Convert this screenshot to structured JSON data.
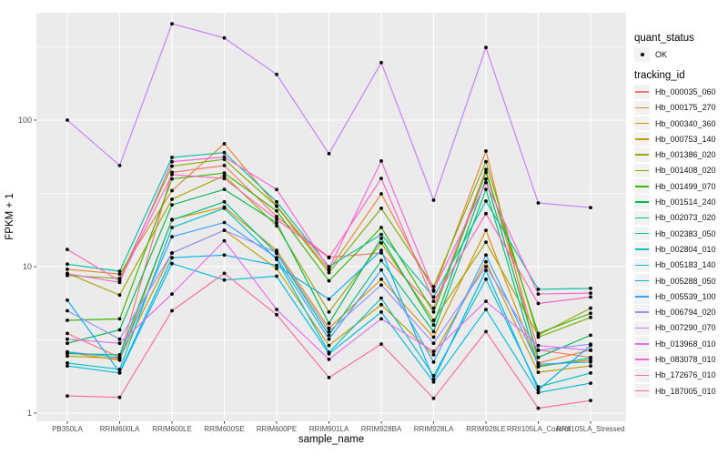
{
  "chart_data": {
    "type": "line",
    "xlabel": "sample_name",
    "ylabel": "FPKM + 1",
    "y_scale": "log10",
    "y_tick_labels": [
      "100",
      "10",
      "1"
    ],
    "y_tick_values": [
      100,
      10,
      1
    ],
    "y_minor_values": [
      316,
      31.6,
      3.16
    ],
    "ylim": [
      1,
      560
    ],
    "grid": true,
    "legend_position": "right",
    "categories": [
      "PB350LA",
      "RRIM600LA",
      "RRIM600LE",
      "RRIM600SE",
      "RRIM600PE",
      "RRIM901LA",
      "RRIM928BA",
      "RRIM928LA",
      "RRIM928LE",
      "RRII105LA_Control",
      "RRII105LA_Stressed"
    ],
    "series": [
      {
        "name": "Hb_000035_060",
        "color": "#F8766D",
        "values": [
          3.5,
          2.4,
          44,
          49,
          22,
          11.6,
          12.4,
          5.2,
          46,
          2.7,
          2.4
        ]
      },
      {
        "name": "Hb_000175_270",
        "color": "#EA8331",
        "values": [
          9.6,
          8.9,
          33,
          69,
          26,
          9.5,
          31.4,
          6.8,
          61.5,
          2.2,
          2.7
        ]
      },
      {
        "name": "Hb_000340_360",
        "color": "#D89000",
        "values": [
          2.6,
          2.3,
          21,
          25.5,
          12.9,
          3.8,
          8.2,
          3.3,
          17.7,
          2.1,
          2.3
        ]
      },
      {
        "name": "Hb_000753_140",
        "color": "#C09B00",
        "values": [
          2.45,
          2.36,
          12.4,
          17.7,
          9.7,
          2.9,
          5.5,
          2.5,
          10.8,
          1.9,
          2.1
        ]
      },
      {
        "name": "Hb_001386_020",
        "color": "#A3A500",
        "values": [
          9.0,
          6.4,
          28.8,
          41.8,
          19.0,
          4.9,
          14.5,
          4.3,
          14.7,
          3.4,
          5.2
        ]
      },
      {
        "name": "Hb_001408_020",
        "color": "#7CAE00",
        "values": [
          8.7,
          8.3,
          48.5,
          54,
          25.8,
          9.1,
          25,
          7.3,
          52,
          3.3,
          4.5
        ]
      },
      {
        "name": "Hb_001499_070",
        "color": "#39B600",
        "values": [
          4.3,
          4.4,
          39.7,
          43.5,
          24,
          8.0,
          18.5,
          4.9,
          44,
          3.5,
          4.8
        ]
      },
      {
        "name": "Hb_001514_240",
        "color": "#00BB4E",
        "values": [
          3.0,
          3.7,
          26.4,
          33.7,
          19.9,
          4.1,
          15.6,
          4.0,
          39.6,
          2.4,
          3.4
        ]
      },
      {
        "name": "Hb_002073_020",
        "color": "#00BF7D",
        "values": [
          2.55,
          2.5,
          20.8,
          27.7,
          12.3,
          3.4,
          11.0,
          3.6,
          33.7,
          2.07,
          2.38
        ]
      },
      {
        "name": "Hb_002383_050",
        "color": "#00C1A3",
        "values": [
          10.4,
          9.3,
          55.6,
          60,
          27.7,
          10.0,
          16.6,
          6.2,
          28,
          7.0,
          7.1
        ]
      },
      {
        "name": "Hb_002804_010",
        "color": "#00BFC4",
        "values": [
          2.2,
          1.99,
          18.5,
          25,
          11.2,
          2.6,
          6.1,
          1.8,
          8.2,
          1.51,
          1.88
        ]
      },
      {
        "name": "Hb_005183_140",
        "color": "#00BAE0",
        "values": [
          2.1,
          1.88,
          10.5,
          8.1,
          8.6,
          2.54,
          4.9,
          1.63,
          5.1,
          1.38,
          1.6
        ]
      },
      {
        "name": "Hb_005288_050",
        "color": "#00B0F6",
        "values": [
          5.9,
          1.9,
          11.5,
          12.0,
          10.2,
          6.0,
          12.9,
          1.7,
          9.4,
          1.44,
          2.9
        ]
      },
      {
        "name": "Hb_005539_100",
        "color": "#35A2FF",
        "values": [
          2.62,
          2.4,
          16,
          20,
          11.5,
          3.2,
          9.5,
          2.23,
          12,
          2.16,
          2.23
        ]
      },
      {
        "name": "Hb_006794_020",
        "color": "#9590FF",
        "values": [
          5.0,
          3.2,
          12.4,
          17.7,
          12.5,
          3.6,
          7.5,
          3.0,
          10,
          2.68,
          2.96
        ]
      },
      {
        "name": "Hb_007290_070",
        "color": "#C77CFF",
        "values": [
          100,
          49,
          455,
          364,
          205,
          59,
          247,
          28.4,
          313,
          27.2,
          25.3
        ]
      },
      {
        "name": "Hb_013968_010",
        "color": "#E76BF3",
        "values": [
          3.2,
          3.0,
          6.5,
          15,
          5.1,
          2.33,
          4.4,
          2.64,
          5.8,
          2.9,
          2.68
        ]
      },
      {
        "name": "Hb_083078_010",
        "color": "#FA62DB",
        "values": [
          8.95,
          7.8,
          52,
          56,
          33.6,
          9.7,
          52.6,
          6.9,
          37.5,
          6.5,
          6.6
        ]
      },
      {
        "name": "Hb_172676_010",
        "color": "#FF62BC",
        "values": [
          13.1,
          8.0,
          42.5,
          39.9,
          21,
          11.5,
          40,
          5.8,
          23,
          5.6,
          6.2
        ]
      },
      {
        "name": "Hb_187005_010",
        "color": "#FF6A98",
        "values": [
          1.31,
          1.28,
          5.0,
          9.0,
          4.7,
          1.75,
          2.96,
          1.26,
          3.6,
          1.08,
          1.22
        ]
      }
    ],
    "legend": {
      "quant_status_title": "quant_status",
      "quant_status_items": [
        {
          "label": "OK",
          "symbol": "point"
        }
      ],
      "tracking_title": "tracking_id"
    },
    "style": {
      "panel_bg": "#EBEBEB",
      "grid_color": "#FFFFFF",
      "legend_key_bg": "#F2F2F2",
      "point_color": "#000000",
      "tick_color": "#333333",
      "axis_text_color": "#4d4d4d"
    }
  }
}
